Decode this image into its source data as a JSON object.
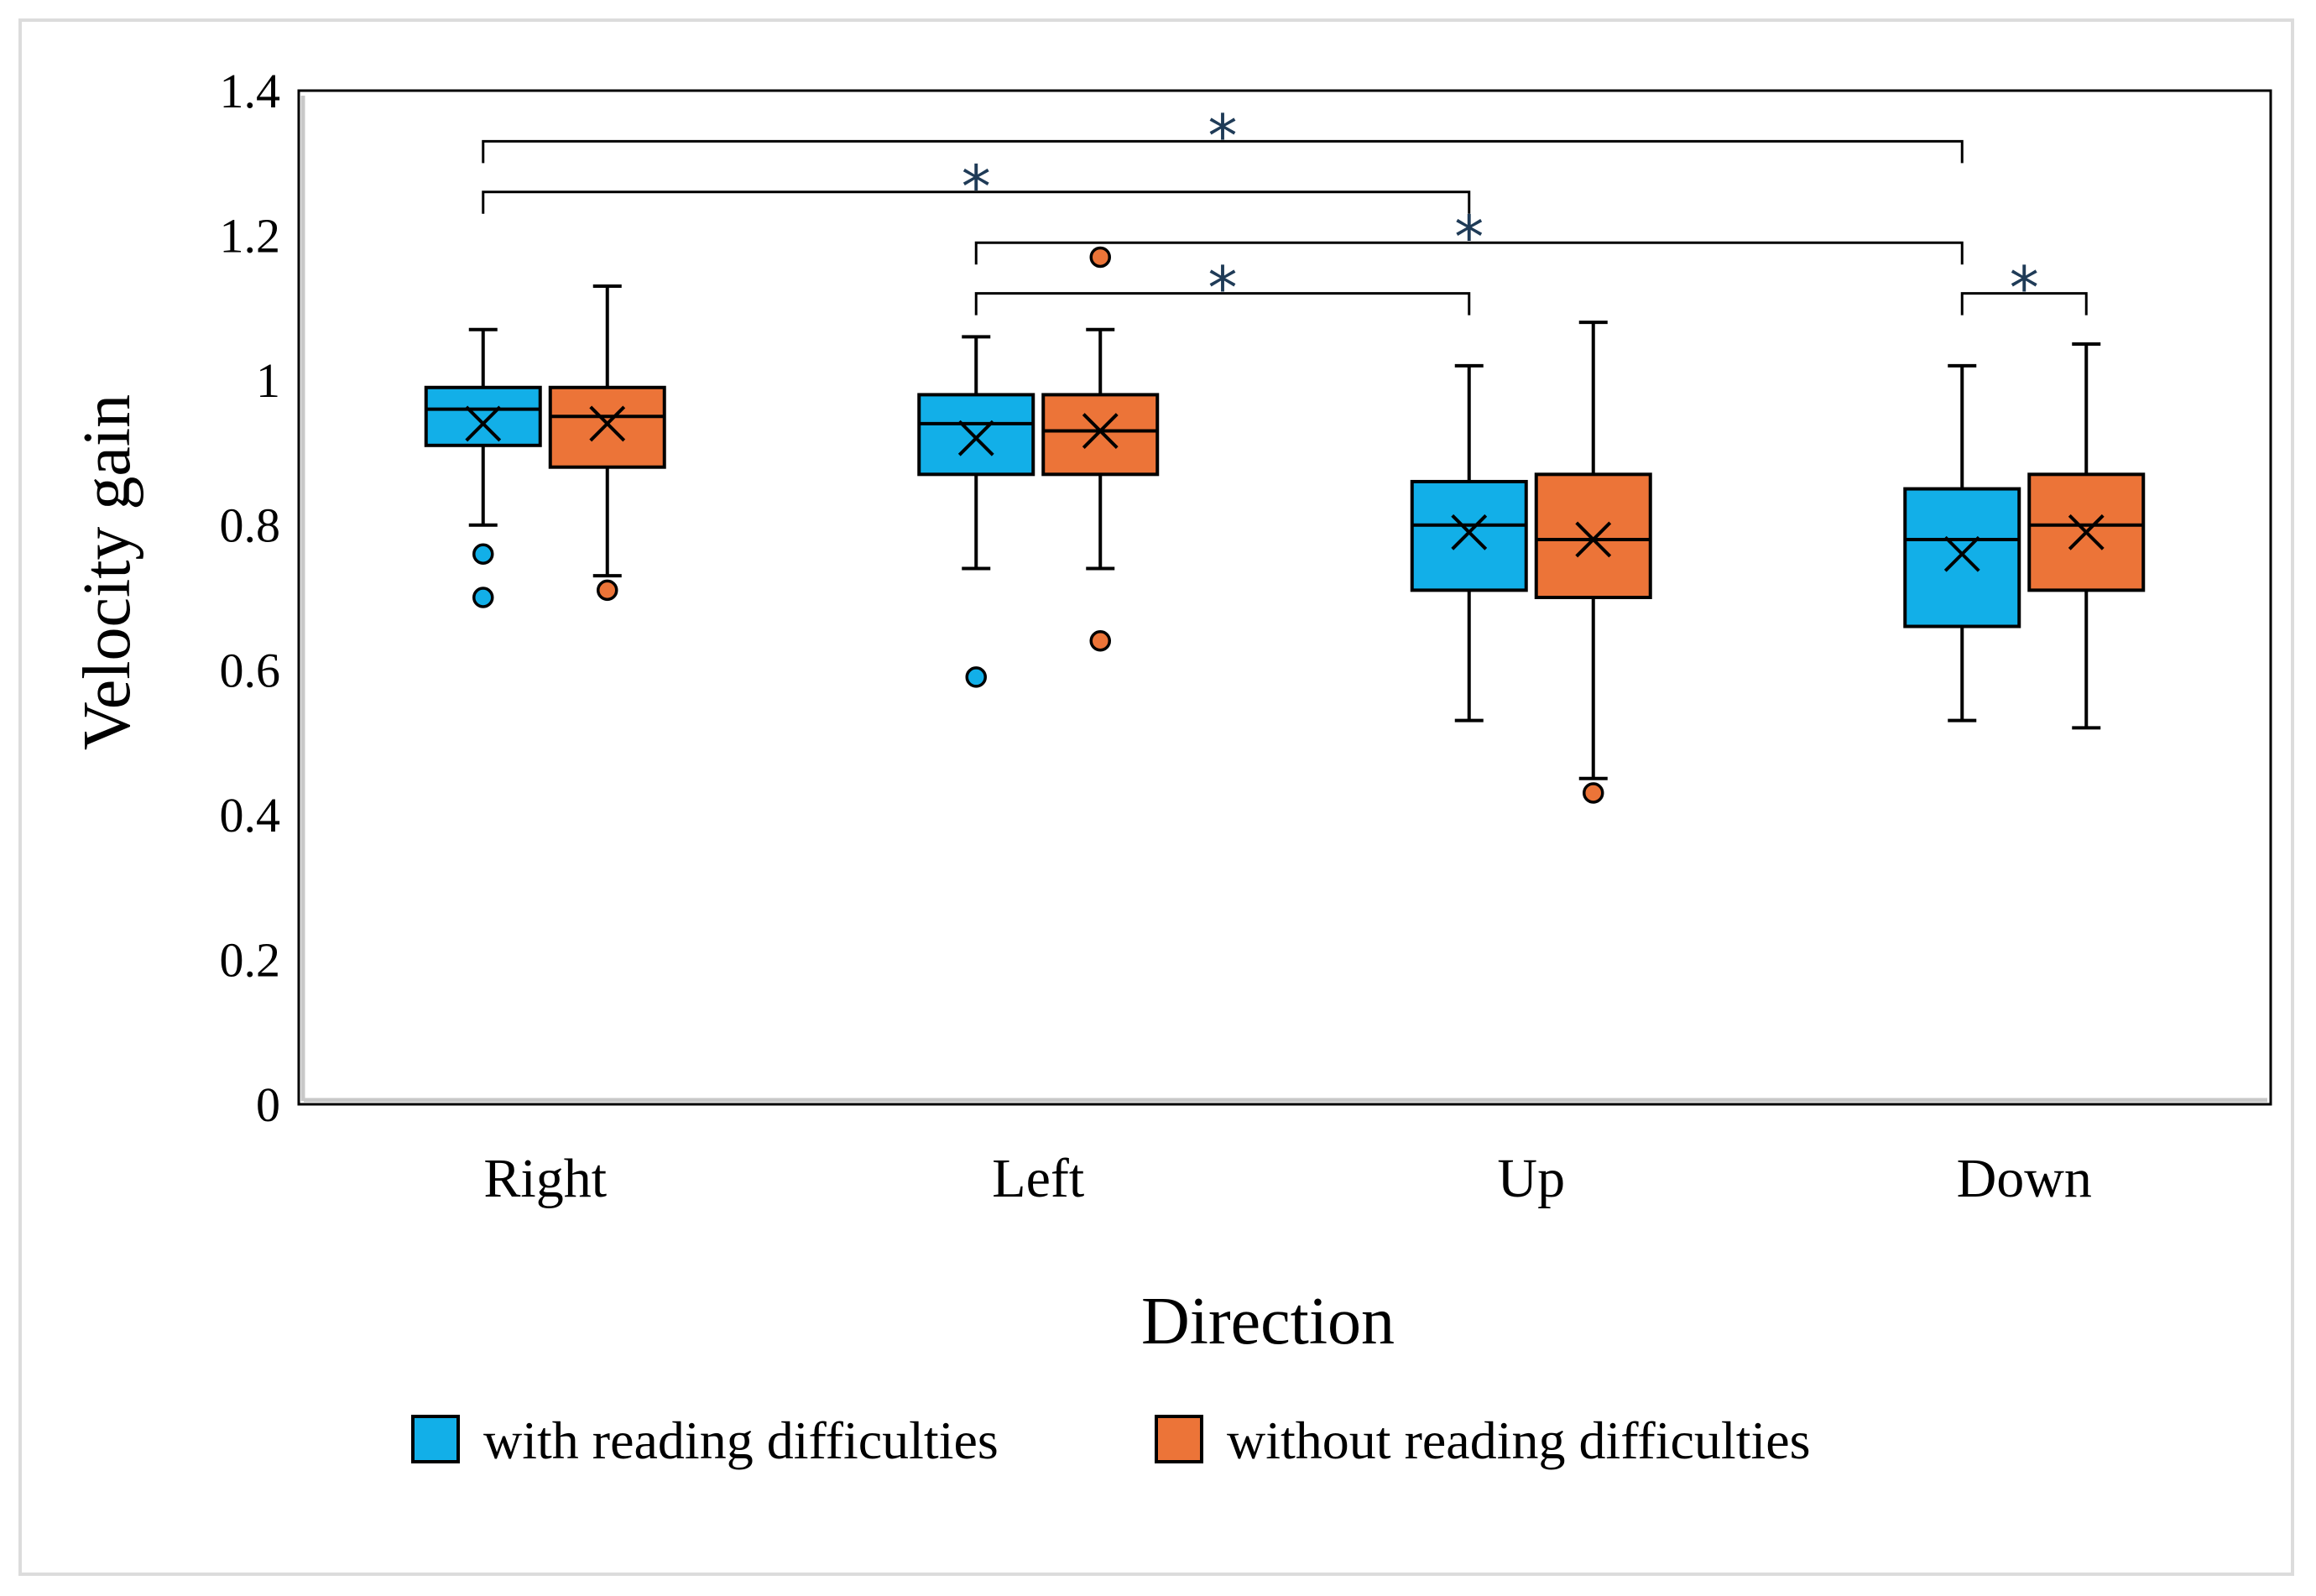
{
  "chart_data": {
    "type": "box",
    "categories": [
      "Right",
      "Left",
      "Up",
      "Down"
    ],
    "xlabel": "Direction",
    "ylabel": "Velocity gain",
    "ylim": [
      0,
      1.4
    ],
    "yticks": [
      "0",
      "0.2",
      "0.4",
      "0.6",
      "0.8",
      "1",
      "1.2",
      "1.4"
    ],
    "grid": false,
    "legend_position": "bottom",
    "series": [
      {
        "name": "with reading difficulties",
        "color": "#12afe8",
        "boxes": [
          {
            "category": "Right",
            "min": 0.8,
            "q1": 0.91,
            "median": 0.96,
            "q3": 0.99,
            "max": 1.07,
            "mean": 0.94,
            "outliers": [
              0.76,
              0.7
            ]
          },
          {
            "category": "Left",
            "min": 0.74,
            "q1": 0.87,
            "median": 0.94,
            "q3": 0.98,
            "max": 1.06,
            "mean": 0.92,
            "outliers": [
              0.59
            ]
          },
          {
            "category": "Up",
            "min": 0.53,
            "q1": 0.71,
            "median": 0.8,
            "q3": 0.86,
            "max": 1.02,
            "mean": 0.79,
            "outliers": []
          },
          {
            "category": "Down",
            "min": 0.53,
            "q1": 0.66,
            "median": 0.78,
            "q3": 0.85,
            "max": 1.02,
            "mean": 0.76,
            "outliers": []
          }
        ]
      },
      {
        "name": "without reading difficulties",
        "color": "#ec7438",
        "boxes": [
          {
            "category": "Right",
            "min": 0.73,
            "q1": 0.88,
            "median": 0.95,
            "q3": 0.99,
            "max": 1.13,
            "mean": 0.94,
            "outliers": [
              0.71
            ]
          },
          {
            "category": "Left",
            "min": 0.74,
            "q1": 0.87,
            "median": 0.93,
            "q3": 0.98,
            "max": 1.07,
            "mean": 0.93,
            "outliers": [
              1.17,
              0.64
            ]
          },
          {
            "category": "Up",
            "min": 0.45,
            "q1": 0.7,
            "median": 0.78,
            "q3": 0.87,
            "max": 1.08,
            "mean": 0.78,
            "outliers": [
              0.43
            ]
          },
          {
            "category": "Down",
            "min": 0.52,
            "q1": 0.71,
            "median": 0.8,
            "q3": 0.87,
            "max": 1.05,
            "mean": 0.79,
            "outliers": []
          }
        ]
      }
    ],
    "significance_brackets": [
      {
        "label": "*",
        "from_category": "Right",
        "from_series": 0,
        "to_category": "Down",
        "to_series": 0,
        "y": 1.33
      },
      {
        "label": "*",
        "from_category": "Right",
        "from_series": 0,
        "to_category": "Up",
        "to_series": 0,
        "y": 1.26
      },
      {
        "label": "*",
        "from_category": "Left",
        "from_series": 0,
        "to_category": "Down",
        "to_series": 0,
        "y": 1.19
      },
      {
        "label": "*",
        "from_category": "Left",
        "from_series": 0,
        "to_category": "Up",
        "to_series": 0,
        "y": 1.12
      },
      {
        "label": "*",
        "from_category": "Down",
        "from_series": 0,
        "to_category": "Down",
        "to_series": 1,
        "y": 1.12
      }
    ]
  }
}
